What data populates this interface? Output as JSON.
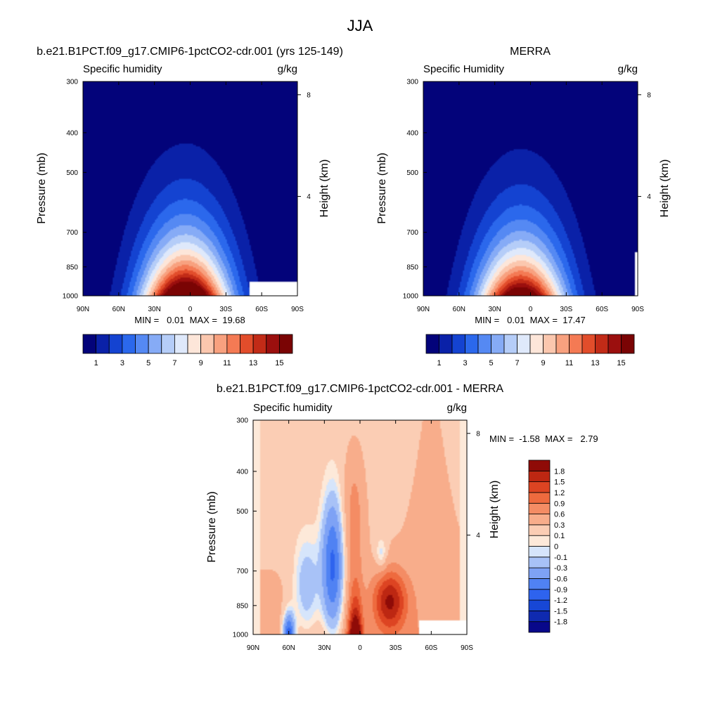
{
  "figure": {
    "title": "JJA"
  },
  "colors": {
    "abs_palette": [
      "#03037a",
      "#0a21a8",
      "#1443d1",
      "#2b68ec",
      "#5589f3",
      "#86abf6",
      "#b5cdf8",
      "#dfe9fb",
      "#fde6d9",
      "#fbc7ae",
      "#f8a17f",
      "#f47a54",
      "#e24d2b",
      "#c22b17",
      "#9b0f0e",
      "#7a0404"
    ],
    "diff_palette": [
      "#08088a",
      "#0f2ab0",
      "#1747d6",
      "#2e63ee",
      "#5082f3",
      "#7ea2f5",
      "#a8c2f7",
      "#d6e5fb",
      "#fde9d9",
      "#fbcdb4",
      "#f8ad8b",
      "#f48c64",
      "#ee6a3e",
      "#dd4422",
      "#bd2712",
      "#8f0b07"
    ]
  },
  "chart_data": [
    {
      "type": "heatmap",
      "title": "b.e21.B1PCT.f09_g17.CMIP6-1pctCO2-cdr.001 (yrs 125-149)",
      "left_label": "Specific humidity",
      "right_label": "g/kg",
      "xlabel": "",
      "ylabel": "Pressure (mb)",
      "y2label": "Height (km)",
      "x_ticks": [
        "90N",
        "60N",
        "30N",
        "0",
        "30S",
        "60S",
        "90S"
      ],
      "y_ticks": [
        "300",
        "400",
        "500",
        "700",
        "850",
        "1000"
      ],
      "y_values": [
        300,
        400,
        500,
        700,
        850,
        1000
      ],
      "y2_ticks": [
        "8",
        "4"
      ],
      "y2_values": [
        8,
        4
      ],
      "x_range": [
        90,
        -90
      ],
      "y_range": [
        300,
        1000
      ],
      "y_scale": "log",
      "min": 0.01,
      "max": 19.68,
      "stats_text": "MIN =   0.01  MAX =  19.68",
      "colorbar_ticks": [
        "1",
        "3",
        "5",
        "7",
        "9",
        "11",
        "13",
        "15"
      ],
      "field": {
        "peak": 19.68,
        "center_lat": 4,
        "missing_below_from_lat": -50,
        "missing_below_pressure": 925
      }
    },
    {
      "type": "heatmap",
      "title": "MERRA",
      "left_label": "Specific Humidity",
      "right_label": "g/kg",
      "xlabel": "",
      "ylabel": "Pressure (mb)",
      "y2label": "Height (km)",
      "x_ticks": [
        "90N",
        "60N",
        "30N",
        "0",
        "30S",
        "60S",
        "90S"
      ],
      "y_ticks": [
        "300",
        "400",
        "500",
        "700",
        "850",
        "1000"
      ],
      "y_values": [
        300,
        400,
        500,
        700,
        850,
        1000
      ],
      "y2_ticks": [
        "8",
        "4"
      ],
      "y2_values": [
        8,
        4
      ],
      "x_range": [
        90,
        -90
      ],
      "y_range": [
        300,
        1000
      ],
      "y_scale": "log",
      "min": 0.01,
      "max": 17.47,
      "stats_text": "MIN =   0.01  MAX =  17.47",
      "colorbar_ticks": [
        "1",
        "3",
        "5",
        "7",
        "9",
        "11",
        "13",
        "15"
      ],
      "field": {
        "peak": 17.47,
        "center_lat": 8,
        "missing_below_from_lat": -88,
        "missing_below_pressure": 780
      }
    },
    {
      "type": "heatmap",
      "title": "b.e21.B1PCT.f09_g17.CMIP6-1pctCO2-cdr.001 - MERRA",
      "left_label": "Specific humidity",
      "right_label": "g/kg",
      "xlabel": "",
      "ylabel": "Pressure (mb)",
      "y2label": "Height (km)",
      "x_ticks": [
        "90N",
        "60N",
        "30N",
        "0",
        "30S",
        "60S",
        "90S"
      ],
      "y_ticks": [
        "300",
        "400",
        "500",
        "700",
        "850",
        "1000"
      ],
      "y_values": [
        300,
        400,
        500,
        700,
        850,
        1000
      ],
      "y2_ticks": [
        "8",
        "4"
      ],
      "y2_values": [
        8,
        4
      ],
      "x_range": [
        90,
        -90
      ],
      "y_range": [
        300,
        1000
      ],
      "y_scale": "log",
      "min": -1.58,
      "max": 2.79,
      "stats_text": "MIN =  -1.58  MAX =   2.79",
      "colorbar_ticks": [
        "1.8",
        "1.5",
        "1.2",
        "0.9",
        "0.6",
        "0.3",
        "0.1",
        "0",
        "-0.1",
        "-0.3",
        "-0.6",
        "-0.9",
        "-1.2",
        "-1.5",
        "-1.8"
      ],
      "field": {
        "missing_below_from_lat": -50,
        "missing_below_pressure": 925
      }
    }
  ]
}
